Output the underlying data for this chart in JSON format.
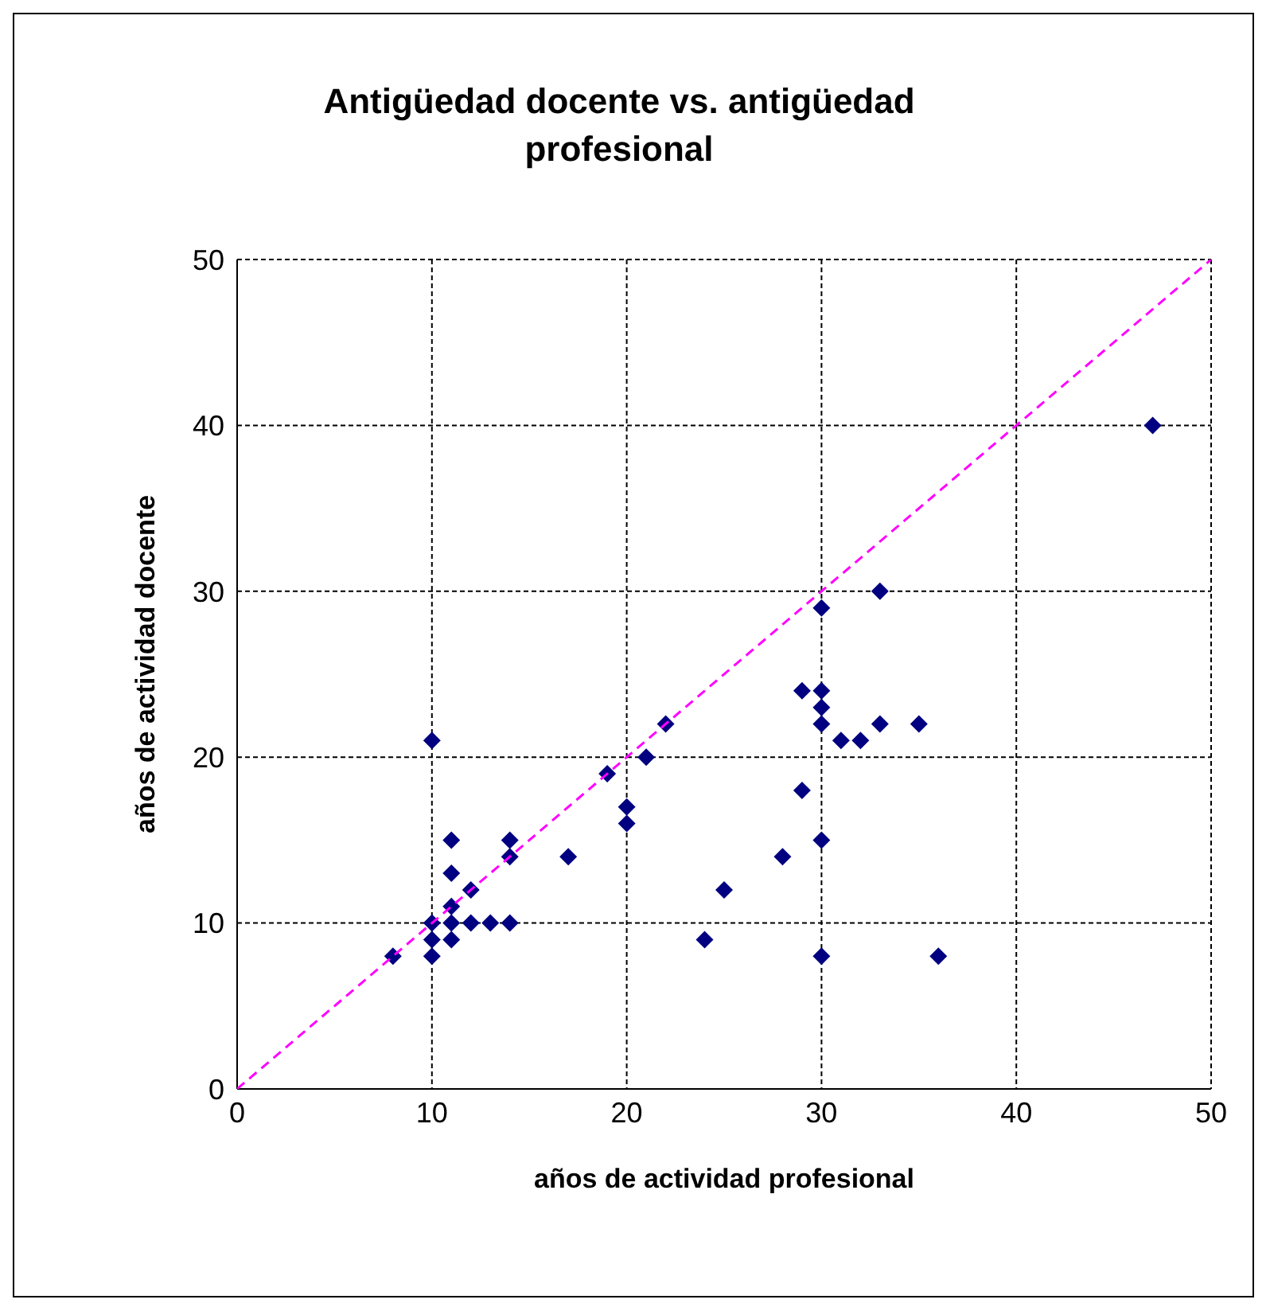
{
  "chart_data": {
    "type": "scatter",
    "title": "Antigüedad docente vs. antigüedad profesional",
    "xlabel": "años de actividad profesional",
    "ylabel": "años de actividad docente",
    "xlim": [
      0,
      50
    ],
    "ylim": [
      0,
      50
    ],
    "xticks": [
      0,
      10,
      20,
      30,
      40,
      50
    ],
    "yticks": [
      0,
      10,
      20,
      30,
      40,
      50
    ],
    "grid": true,
    "series": [
      {
        "color": "#000080",
        "marker": "diamond",
        "x": [
          8,
          10,
          10,
          10,
          10,
          11,
          11,
          11,
          11,
          11,
          12,
          12,
          13,
          14,
          14,
          14,
          17,
          19,
          20,
          20,
          21,
          22,
          24,
          25,
          28,
          29,
          29,
          30,
          30,
          30,
          30,
          30,
          30,
          31,
          32,
          33,
          33,
          35,
          36,
          47
        ],
        "values": [
          8,
          21,
          10,
          9,
          8,
          15,
          13,
          11,
          10,
          9,
          12,
          10,
          10,
          15,
          14,
          10,
          14,
          19,
          17,
          16,
          20,
          22,
          9,
          12,
          14,
          24,
          18,
          29,
          24,
          23,
          22,
          15,
          8,
          21,
          21,
          30,
          22,
          22,
          8,
          40
        ]
      },
      {
        "type": "line",
        "color": "#ff00ff",
        "marker": "none",
        "line_style": "dashed",
        "x": [
          0,
          50
        ],
        "values": [
          0,
          50
        ]
      }
    ]
  }
}
